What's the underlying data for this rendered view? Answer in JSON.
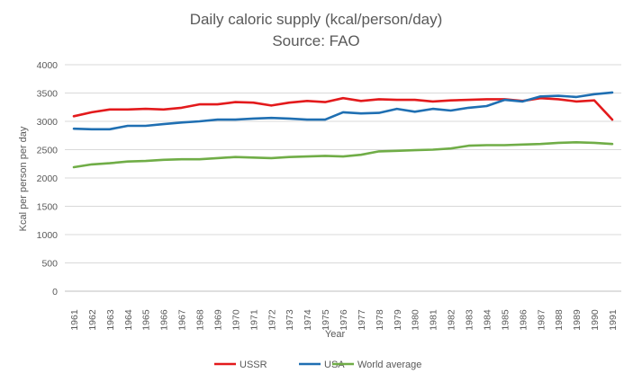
{
  "chart_data": {
    "type": "line",
    "title": "Daily caloric supply (kcal/person/day)",
    "subtitle": "Source: FAO",
    "xlabel": "Year",
    "ylabel": "Kcal per person per day",
    "ylim": [
      0,
      4000
    ],
    "yticks": [
      "0",
      "500",
      "1000",
      "1500",
      "2000",
      "2500",
      "3000",
      "3500",
      "4000"
    ],
    "ytick_values": [
      0,
      500,
      1000,
      1500,
      2000,
      2500,
      3000,
      3500,
      4000
    ],
    "grid": true,
    "legend_position": "bottom",
    "categories": [
      "1961",
      "1962",
      "1963",
      "1964",
      "1965",
      "1966",
      "1967",
      "1968",
      "1969",
      "1970",
      "1971",
      "1972",
      "1973",
      "1974",
      "1975",
      "1976",
      "1977",
      "1978",
      "1979",
      "1980",
      "1981",
      "1982",
      "1983",
      "1984",
      "1985",
      "1986",
      "1987",
      "1988",
      "1989",
      "1990",
      "1991"
    ],
    "series": [
      {
        "name": "USSR",
        "color": "#e31a1c",
        "values": [
          3090,
          3160,
          3210,
          3210,
          3220,
          3210,
          3240,
          3300,
          3300,
          3340,
          3330,
          3280,
          3330,
          3360,
          3340,
          3410,
          3360,
          3390,
          3380,
          3380,
          3350,
          3370,
          3380,
          3390,
          3390,
          3360,
          3410,
          3390,
          3350,
          3370,
          3030
        ]
      },
      {
        "name": "USA",
        "color": "#1f6fb2",
        "values": [
          2870,
          2860,
          2860,
          2920,
          2920,
          2950,
          2980,
          3000,
          3030,
          3030,
          3050,
          3060,
          3050,
          3030,
          3030,
          3160,
          3140,
          3150,
          3220,
          3170,
          3220,
          3190,
          3240,
          3270,
          3380,
          3350,
          3440,
          3450,
          3430,
          3480,
          3510
        ]
      },
      {
        "name": "World average",
        "color": "#70ad47",
        "values": [
          2190,
          2240,
          2260,
          2290,
          2300,
          2320,
          2330,
          2330,
          2350,
          2370,
          2360,
          2350,
          2370,
          2380,
          2390,
          2380,
          2410,
          2470,
          2480,
          2490,
          2500,
          2520,
          2570,
          2580,
          2580,
          2590,
          2600,
          2620,
          2630,
          2620,
          2600
        ]
      }
    ]
  }
}
